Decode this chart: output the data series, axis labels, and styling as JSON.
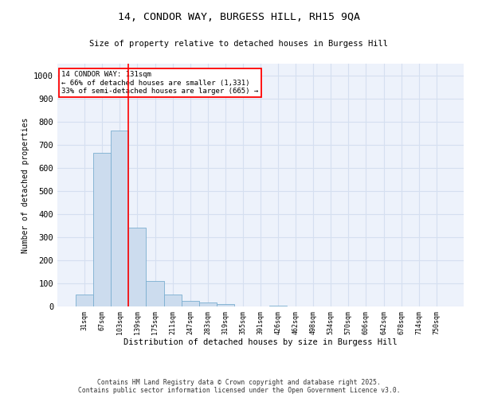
{
  "title_line1": "14, CONDOR WAY, BURGESS HILL, RH15 9QA",
  "title_line2": "Size of property relative to detached houses in Burgess Hill",
  "xlabel": "Distribution of detached houses by size in Burgess Hill",
  "ylabel": "Number of detached properties",
  "footer_line1": "Contains HM Land Registry data © Crown copyright and database right 2025.",
  "footer_line2": "Contains public sector information licensed under the Open Government Licence v3.0.",
  "bar_labels": [
    "31sqm",
    "67sqm",
    "103sqm",
    "139sqm",
    "175sqm",
    "211sqm",
    "247sqm",
    "283sqm",
    "319sqm",
    "355sqm",
    "391sqm",
    "426sqm",
    "462sqm",
    "498sqm",
    "534sqm",
    "570sqm",
    "606sqm",
    "642sqm",
    "678sqm",
    "714sqm",
    "750sqm"
  ],
  "bar_values": [
    50,
    665,
    760,
    340,
    110,
    50,
    25,
    18,
    10,
    0,
    0,
    3,
    0,
    0,
    0,
    0,
    0,
    0,
    0,
    0,
    0
  ],
  "bar_color": "#ccdcee",
  "bar_edge_color": "#7aaed0",
  "grid_color": "#d5dff0",
  "background_color": "#edf2fb",
  "vline_color": "red",
  "vline_x_index": 2.5,
  "annotation_title": "14 CONDOR WAY: 131sqm",
  "annotation_line1": "← 66% of detached houses are smaller (1,331)",
  "annotation_line2": "33% of semi-detached houses are larger (665) →",
  "ylim": [
    0,
    1050
  ],
  "yticks": [
    0,
    100,
    200,
    300,
    400,
    500,
    600,
    700,
    800,
    900,
    1000
  ]
}
